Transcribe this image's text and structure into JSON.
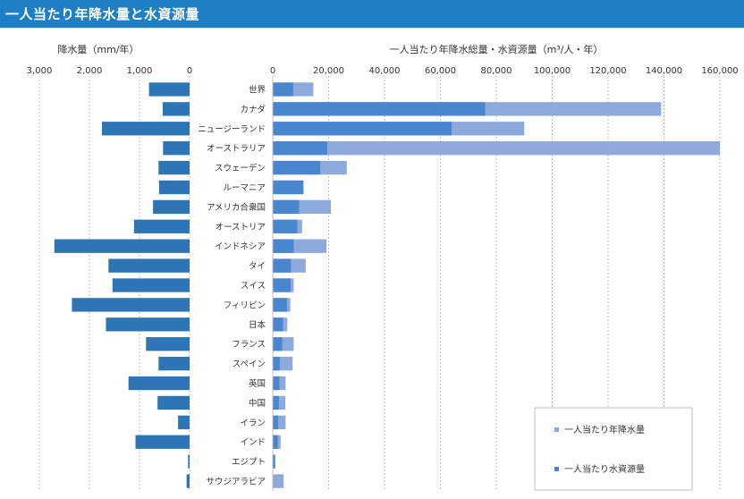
{
  "header": {
    "title": "一人当たり年降水量と水資源量"
  },
  "chart_data": [
    {
      "type": "bar",
      "orientation": "horizontal",
      "direction": "reversed",
      "title": "降水量（mm/年）",
      "xlim": [
        0,
        3000
      ],
      "ticks": [
        "3,000",
        "2,000",
        "1,000",
        "0"
      ],
      "tick_values": [
        3000,
        2000,
        1000,
        0
      ],
      "grid": true,
      "categories": [
        "世界",
        "カナダ",
        "ニュージーランド",
        "オーストラリア",
        "スウェーデン",
        "ルーマニア",
        "アメリカ合衆国",
        "オーストリア",
        "インドネシア",
        "タイ",
        "スイス",
        "フィリピン",
        "日本",
        "フランス",
        "スペイン",
        "英国",
        "中国",
        "イラン",
        "インド",
        "エジプト",
        "サウジアラビア"
      ],
      "series": [
        {
          "values": [
            810,
            537,
            1750,
            530,
            620,
            610,
            730,
            1110,
            2700,
            1620,
            1540,
            2350,
            1670,
            870,
            620,
            1220,
            640,
            230,
            1080,
            30,
            60
          ],
          "color": "#2e75b6"
        }
      ]
    },
    {
      "type": "bar",
      "orientation": "horizontal",
      "title": "一人当たり年降水総量・水資源量（m³/人・年）",
      "xlim": [
        0,
        160000
      ],
      "ticks": [
        "0",
        "20,000",
        "40,000",
        "60,000",
        "80,000",
        "100,000",
        "120,000",
        "140,000",
        "160,000"
      ],
      "tick_values": [
        0,
        20000,
        40000,
        60000,
        80000,
        100000,
        120000,
        140000,
        160000
      ],
      "grid": true,
      "legend_position": "bottom-right",
      "categories": [
        "世界",
        "カナダ",
        "ニュージーランド",
        "オーストラリア",
        "スウェーデン",
        "ルーマニア",
        "アメリカ合衆国",
        "オーストリア",
        "インドネシア",
        "タイ",
        "スイス",
        "フィリピン",
        "日本",
        "フランス",
        "スペイン",
        "英国",
        "中国",
        "イラン",
        "インド",
        "エジプト",
        "サウジアラビア"
      ],
      "series": [
        {
          "name": "一人当たり年降水量",
          "values": [
            14500,
            139000,
            90000,
            160000,
            26500,
            10500,
            20800,
            10500,
            19200,
            11800,
            7500,
            6300,
            5200,
            7500,
            7100,
            4600,
            4500,
            4600,
            2800,
            300,
            3900
          ],
          "color": "#8eaadb"
        },
        {
          "name": "一人当たり水資源量",
          "values": [
            7300,
            76000,
            64000,
            19500,
            17000,
            11000,
            9400,
            8800,
            7500,
            6500,
            6400,
            5100,
            3700,
            3400,
            2500,
            2400,
            2200,
            1900,
            1800,
            900,
            100
          ],
          "color": "#4a86cf"
        }
      ]
    }
  ]
}
